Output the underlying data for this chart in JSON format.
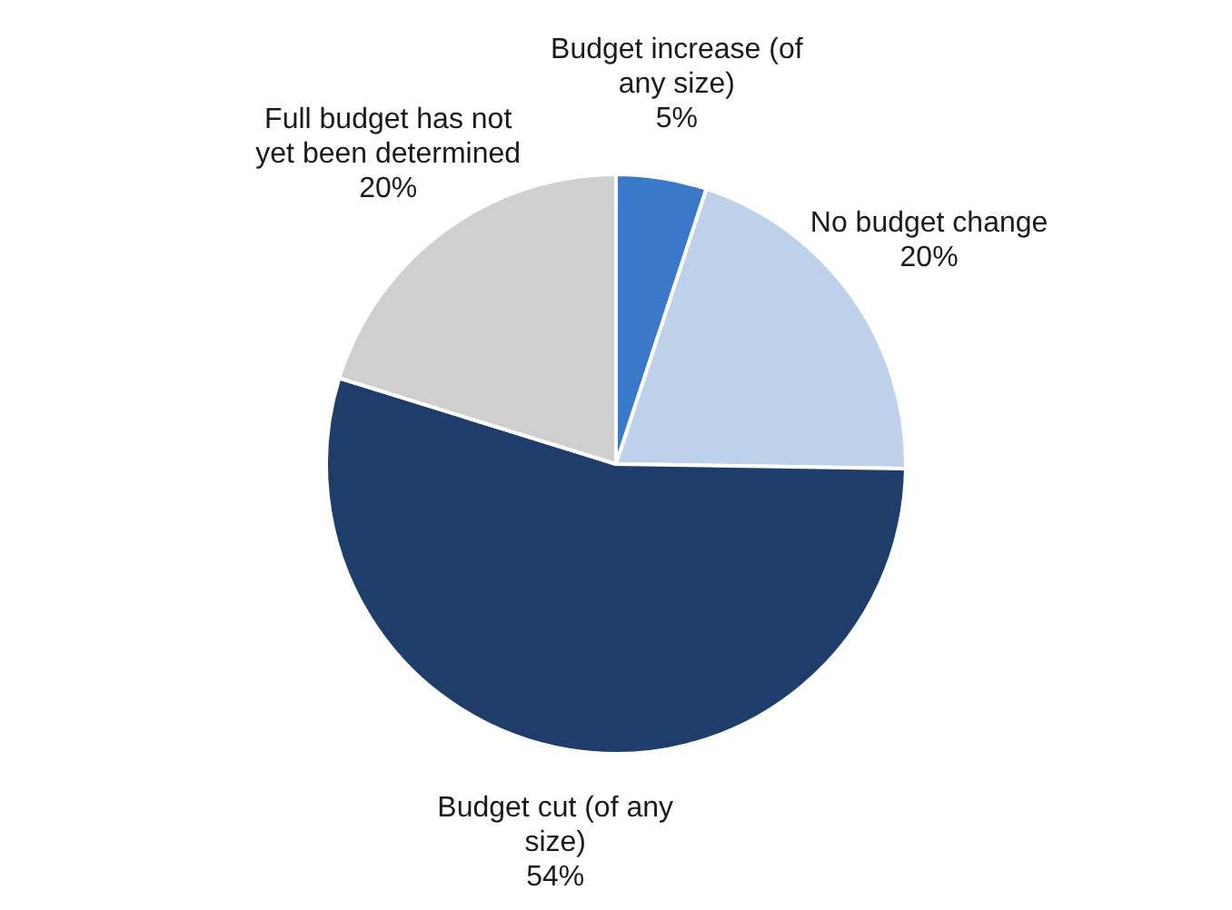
{
  "chart_data": {
    "type": "pie",
    "categories": [
      "Budget increase (of any size)",
      "No budget change",
      "Budget cut (of any size)",
      "Full budget has not yet been determined"
    ],
    "values": [
      5,
      20,
      54,
      20
    ],
    "colors": [
      "#3a78c9",
      "#bdd1ea",
      "#1f3d6b",
      "#d0cfcf"
    ],
    "value_labels": [
      "5%",
      "20%",
      "54%",
      "20%"
    ],
    "legend": false
  }
}
